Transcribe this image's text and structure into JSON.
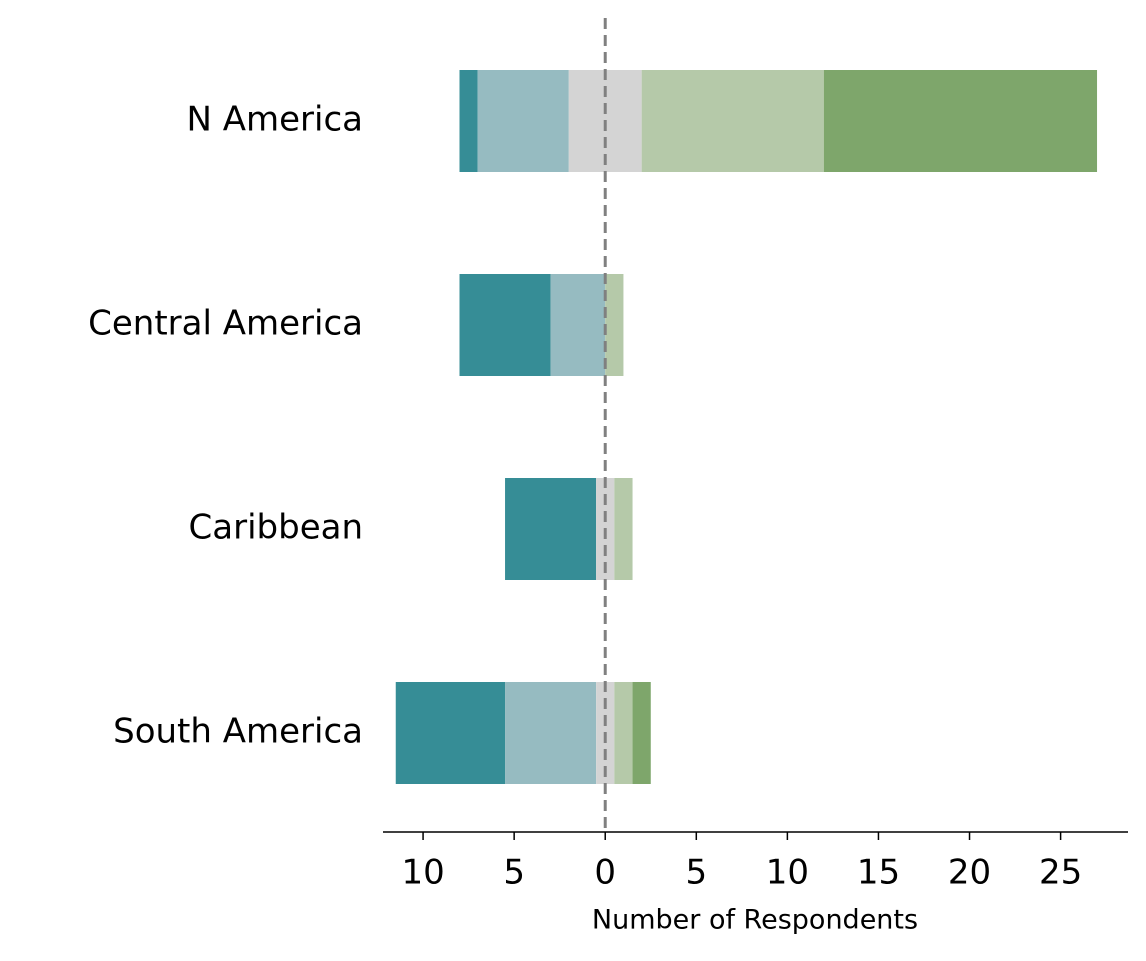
{
  "chart_data": {
    "type": "diverging-bar",
    "categories": [
      "N America",
      "Central America",
      "Caribbean",
      "South America"
    ],
    "series": [
      {
        "color": "#368d96",
        "values": [
          1,
          5,
          5,
          6
        ]
      },
      {
        "color": "#96bbc1",
        "values": [
          5,
          3,
          0,
          5
        ]
      },
      {
        "color": "#d4d4d4",
        "values": [
          4,
          0,
          1,
          1
        ]
      },
      {
        "color": "#b5c9a9",
        "values": [
          10,
          1,
          1,
          1
        ]
      },
      {
        "color": "#7ea66b",
        "values": [
          15,
          0,
          0,
          1
        ]
      }
    ],
    "xlabel": "Number of Respondents",
    "xlim": [
      -12.2,
      28.7
    ],
    "xticks": [
      {
        "value": -10,
        "label": "10"
      },
      {
        "value": -5,
        "label": "5"
      },
      0,
      5,
      10,
      15,
      20,
      25
    ]
  }
}
